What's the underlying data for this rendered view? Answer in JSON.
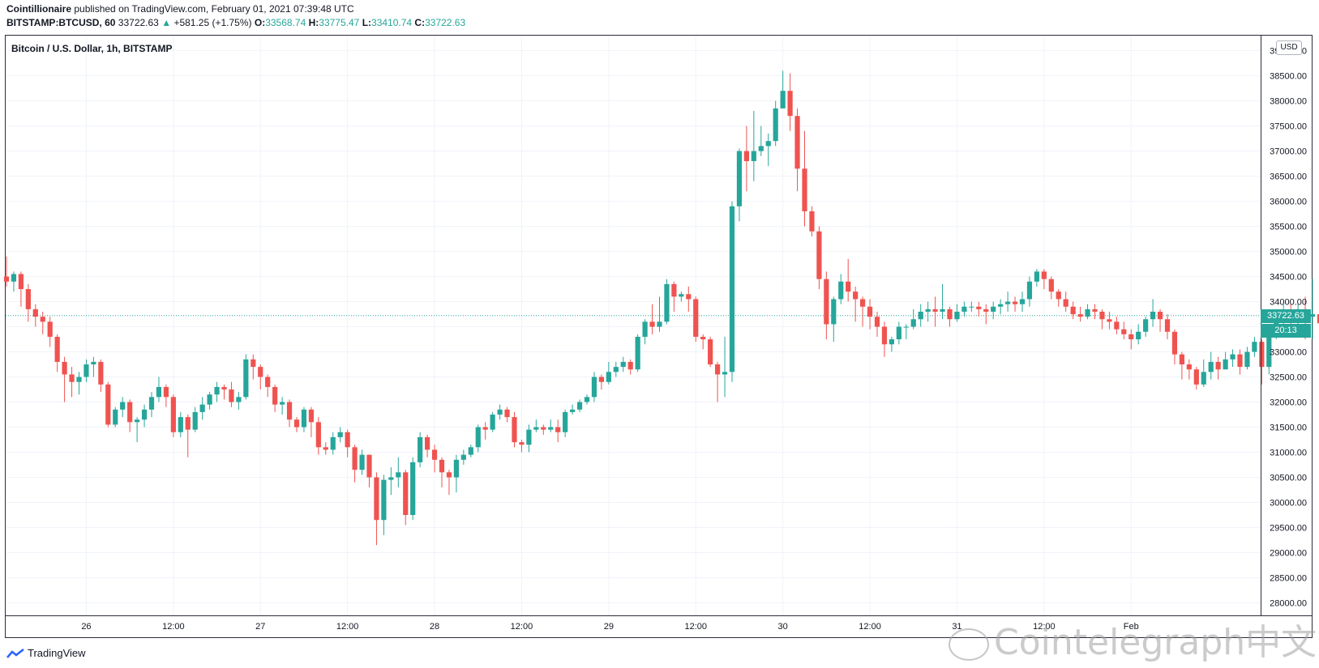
{
  "header": {
    "line1_author": "Cointillionaire",
    "line1_rest": "published on TradingView.com, February 01, 2021 07:39:48 UTC",
    "symbol": "BITSTAMP:BTCUSD, 60",
    "last": "33722.63",
    "arrow": "▲",
    "change": "+581.25 (+1.75%)",
    "open_label": "O:",
    "open": "33568.74",
    "high_label": "H:",
    "high": "33775.47",
    "low_label": "L:",
    "low": "33410.74",
    "close_label": "C:",
    "close": "33722.63"
  },
  "legend": {
    "title": "Bitcoin / U.S. Dollar, 1h, BITSTAMP"
  },
  "price_axis": {
    "currency": "USD",
    "last_price": "33722.63",
    "countdown": "20:13"
  },
  "footer": {
    "brand": "TradingView"
  },
  "watermark": {
    "text": "Cointelegraph中文"
  },
  "colors": {
    "up": "#26a69a",
    "down": "#ef5350",
    "grid": "#f0f3fa",
    "last_price_line": "#26a69a"
  },
  "chart_data": {
    "type": "candlestick",
    "y_ticks": [
      "28000.00",
      "28500.00",
      "29000.00",
      "29500.00",
      "30000.00",
      "30500.00",
      "31000.00",
      "31500.00",
      "32000.00",
      "32500.00",
      "33000.00",
      "33500.00",
      "34000.00",
      "34500.00",
      "35000.00",
      "35500.00",
      "36000.00",
      "36500.00",
      "37000.00",
      "37500.00",
      "38000.00",
      "38500.00",
      "39000.00"
    ],
    "ylim": [
      27750,
      39300
    ],
    "x_ticks": [
      {
        "label": "26",
        "index": 11
      },
      {
        "label": "12:00",
        "index": 23
      },
      {
        "label": "27",
        "index": 35
      },
      {
        "label": "12:00",
        "index": 47
      },
      {
        "label": "28",
        "index": 59
      },
      {
        "label": "12:00",
        "index": 71
      },
      {
        "label": "29",
        "index": 83
      },
      {
        "label": "12:00",
        "index": 95
      },
      {
        "label": "30",
        "index": 107
      },
      {
        "label": "12:00",
        "index": 119
      },
      {
        "label": "31",
        "index": 131
      },
      {
        "label": "12:00",
        "index": 143
      },
      {
        "label": "Feb",
        "index": 155
      }
    ],
    "last_price": 33722.63,
    "candles": [
      [
        34500,
        34400,
        34900,
        34300
      ],
      [
        34400,
        34550,
        34600,
        34200
      ],
      [
        34550,
        34250,
        34600,
        33900
      ],
      [
        34250,
        33850,
        34350,
        33600
      ],
      [
        33850,
        33700,
        33950,
        33500
      ],
      [
        33700,
        33600,
        33800,
        33350
      ],
      [
        33600,
        33300,
        33700,
        33100
      ],
      [
        33300,
        32800,
        33350,
        32600
      ],
      [
        32800,
        32550,
        32900,
        32000
      ],
      [
        32550,
        32400,
        32700,
        32100
      ],
      [
        32400,
        32500,
        32600,
        32150
      ],
      [
        32500,
        32750,
        32850,
        32400
      ],
      [
        32750,
        32800,
        32900,
        32500
      ],
      [
        32800,
        32350,
        32850,
        32200
      ],
      [
        32350,
        31550,
        32400,
        31500
      ],
      [
        31550,
        31850,
        31900,
        31500
      ],
      [
        31850,
        32000,
        32100,
        31700
      ],
      [
        32000,
        31600,
        32050,
        31400
      ],
      [
        31600,
        31650,
        31700,
        31200
      ],
      [
        31650,
        31850,
        31950,
        31500
      ],
      [
        31850,
        32100,
        32200,
        31700
      ],
      [
        32100,
        32300,
        32500,
        32000
      ],
      [
        32300,
        32100,
        32350,
        31900
      ],
      [
        32100,
        31400,
        32150,
        31300
      ],
      [
        31400,
        31700,
        31800,
        31300
      ],
      [
        31700,
        31450,
        31750,
        30900
      ],
      [
        31450,
        31800,
        31900,
        31400
      ],
      [
        31800,
        31950,
        32100,
        31650
      ],
      [
        31950,
        32150,
        32200,
        31850
      ],
      [
        32150,
        32300,
        32400,
        32000
      ],
      [
        32300,
        32250,
        32350,
        32050
      ],
      [
        32250,
        32000,
        32400,
        31900
      ],
      [
        32000,
        32100,
        32200,
        31850
      ],
      [
        32100,
        32850,
        32950,
        32050
      ],
      [
        32850,
        32700,
        32950,
        32450
      ],
      [
        32700,
        32500,
        32750,
        32250
      ],
      [
        32500,
        32300,
        32550,
        32100
      ],
      [
        32300,
        31950,
        32350,
        31800
      ],
      [
        31950,
        32000,
        32100,
        31750
      ],
      [
        32000,
        31650,
        32050,
        31500
      ],
      [
        31650,
        31500,
        31700,
        31400
      ],
      [
        31500,
        31850,
        31900,
        31400
      ],
      [
        31850,
        31600,
        31900,
        31300
      ],
      [
        31600,
        31100,
        31700,
        30950
      ],
      [
        31100,
        31050,
        31200,
        30950
      ],
      [
        31050,
        31300,
        31400,
        30950
      ],
      [
        31300,
        31400,
        31500,
        31200
      ],
      [
        31400,
        31100,
        31450,
        30900
      ],
      [
        31100,
        30650,
        31150,
        30400
      ],
      [
        30650,
        30950,
        31050,
        30550
      ],
      [
        30950,
        30500,
        30950,
        30300
      ],
      [
        30500,
        29650,
        30600,
        29150
      ],
      [
        29650,
        30450,
        30550,
        29350
      ],
      [
        30450,
        30500,
        30700,
        30150
      ],
      [
        30500,
        30600,
        30900,
        30300
      ],
      [
        30600,
        29750,
        30650,
        29550
      ],
      [
        29750,
        30800,
        30900,
        29650
      ],
      [
        30800,
        31300,
        31400,
        30700
      ],
      [
        31300,
        31050,
        31350,
        30900
      ],
      [
        31050,
        30850,
        31150,
        30600
      ],
      [
        30850,
        30600,
        30900,
        30300
      ],
      [
        30600,
        30500,
        30650,
        30150
      ],
      [
        30500,
        30850,
        30950,
        30200
      ],
      [
        30850,
        30950,
        31050,
        30750
      ],
      [
        30950,
        31100,
        31150,
        30900
      ],
      [
        31100,
        31500,
        31550,
        31000
      ],
      [
        31500,
        31450,
        31600,
        31250
      ],
      [
        31450,
        31750,
        31800,
        31400
      ],
      [
        31750,
        31850,
        31950,
        31650
      ],
      [
        31850,
        31700,
        31900,
        31600
      ],
      [
        31700,
        31200,
        31800,
        31100
      ],
      [
        31200,
        31150,
        31250,
        31000
      ],
      [
        31150,
        31450,
        31550,
        31000
      ],
      [
        31450,
        31500,
        31650,
        31400
      ],
      [
        31500,
        31450,
        31550,
        31350
      ],
      [
        31450,
        31500,
        31650,
        31400
      ],
      [
        31500,
        31400,
        31650,
        31200
      ],
      [
        31400,
        31800,
        31850,
        31300
      ],
      [
        31800,
        31850,
        31950,
        31750
      ],
      [
        31850,
        32000,
        32050,
        31800
      ],
      [
        32000,
        32100,
        32150,
        31950
      ],
      [
        32100,
        32500,
        32600,
        32000
      ],
      [
        32500,
        32400,
        32550,
        32250
      ],
      [
        32400,
        32600,
        32800,
        32350
      ],
      [
        32600,
        32700,
        32800,
        32500
      ],
      [
        32700,
        32800,
        32900,
        32600
      ],
      [
        32800,
        32650,
        32850,
        32550
      ],
      [
        32650,
        33300,
        33350,
        32600
      ],
      [
        33300,
        33600,
        33650,
        33150
      ],
      [
        33600,
        33500,
        33950,
        33350
      ],
      [
        33500,
        33600,
        34100,
        33400
      ],
      [
        33600,
        34350,
        34450,
        33550
      ],
      [
        34350,
        34100,
        34400,
        33800
      ],
      [
        34100,
        34150,
        34200,
        34000
      ],
      [
        34150,
        34050,
        34300,
        33800
      ],
      [
        34050,
        33300,
        34100,
        33200
      ],
      [
        33300,
        33250,
        33350,
        33050
      ],
      [
        33250,
        32750,
        33300,
        32700
      ],
      [
        32750,
        32550,
        32800,
        32000
      ],
      [
        32550,
        32600,
        33300,
        32100
      ],
      [
        32600,
        35900,
        36000,
        32400
      ],
      [
        35900,
        37000,
        37050,
        35600
      ],
      [
        37000,
        36800,
        37500,
        36200
      ],
      [
        36800,
        37000,
        37800,
        36400
      ],
      [
        37000,
        37100,
        37500,
        36900
      ],
      [
        37100,
        37200,
        37350,
        36700
      ],
      [
        37200,
        37850,
        38000,
        37100
      ],
      [
        37850,
        38200,
        38600,
        37900
      ],
      [
        38200,
        37700,
        38550,
        37400
      ],
      [
        37700,
        36650,
        37850,
        36200
      ],
      [
        36650,
        35800,
        37400,
        35500
      ],
      [
        35800,
        35400,
        35900,
        35300
      ],
      [
        35400,
        34450,
        35500,
        34250
      ],
      [
        34450,
        33550,
        34600,
        33250
      ],
      [
        33550,
        34050,
        34100,
        33200
      ],
      [
        34050,
        34400,
        34550,
        33950
      ],
      [
        34400,
        34200,
        34850,
        34000
      ],
      [
        34200,
        34050,
        34300,
        33600
      ],
      [
        34050,
        33900,
        34100,
        33500
      ],
      [
        33900,
        33700,
        34050,
        33450
      ],
      [
        33700,
        33500,
        33800,
        33300
      ],
      [
        33500,
        33150,
        33600,
        32900
      ],
      [
        33150,
        33250,
        33300,
        33000
      ],
      [
        33250,
        33500,
        33600,
        33150
      ],
      [
        33500,
        33500,
        33550,
        33250
      ],
      [
        33500,
        33650,
        33850,
        33450
      ],
      [
        33650,
        33800,
        33950,
        33500
      ],
      [
        33800,
        33850,
        34000,
        33600
      ],
      [
        33850,
        33800,
        34100,
        33500
      ],
      [
        33800,
        33850,
        34350,
        33650
      ],
      [
        33850,
        33650,
        33900,
        33500
      ],
      [
        33650,
        33800,
        33950,
        33600
      ],
      [
        33800,
        33900,
        34000,
        33700
      ],
      [
        33900,
        33900,
        34000,
        33800
      ],
      [
        33900,
        33850,
        34000,
        33700
      ],
      [
        33850,
        33800,
        33950,
        33550
      ],
      [
        33800,
        33900,
        34000,
        33650
      ],
      [
        33900,
        33950,
        34050,
        33750
      ],
      [
        33950,
        34000,
        34200,
        33800
      ],
      [
        34000,
        33950,
        34100,
        33800
      ],
      [
        33950,
        34050,
        34200,
        33800
      ],
      [
        34050,
        34400,
        34500,
        33900
      ],
      [
        34400,
        34600,
        34650,
        34300
      ],
      [
        34600,
        34450,
        34650,
        34250
      ],
      [
        34450,
        34200,
        34500,
        34050
      ],
      [
        34200,
        34050,
        34250,
        33900
      ],
      [
        34050,
        33900,
        34200,
        33800
      ],
      [
        33900,
        33750,
        34000,
        33650
      ],
      [
        33750,
        33700,
        33900,
        33600
      ],
      [
        33700,
        33850,
        33950,
        33650
      ],
      [
        33850,
        33800,
        33950,
        33650
      ],
      [
        33800,
        33650,
        33850,
        33450
      ],
      [
        33650,
        33600,
        33800,
        33450
      ],
      [
        33600,
        33450,
        33700,
        33350
      ],
      [
        33450,
        33350,
        33600,
        33250
      ],
      [
        33350,
        33250,
        33450,
        33050
      ],
      [
        33250,
        33400,
        33550,
        33150
      ],
      [
        33400,
        33650,
        33700,
        33300
      ],
      [
        33650,
        33800,
        34050,
        33500
      ],
      [
        33800,
        33650,
        33850,
        33400
      ],
      [
        33650,
        33400,
        33750,
        33250
      ],
      [
        33400,
        32950,
        33450,
        32750
      ],
      [
        32950,
        32750,
        33000,
        32450
      ],
      [
        32750,
        32650,
        32850,
        32450
      ],
      [
        32650,
        32350,
        32700,
        32250
      ],
      [
        32350,
        32600,
        32850,
        32300
      ],
      [
        32600,
        32800,
        33000,
        32450
      ],
      [
        32800,
        32650,
        32900,
        32450
      ],
      [
        32650,
        32850,
        33000,
        32650
      ],
      [
        32850,
        32950,
        33050,
        32700
      ],
      [
        32950,
        32700,
        33050,
        32550
      ],
      [
        32700,
        33000,
        33100,
        32650
      ],
      [
        33000,
        33200,
        33300,
        32900
      ],
      [
        33200,
        32700,
        33250,
        32350
      ],
      [
        32700,
        33350,
        33400,
        32550
      ],
      [
        33350,
        33700,
        33800,
        33250
      ],
      [
        33700,
        33750,
        33950,
        33550
      ],
      [
        33750,
        33650,
        33950,
        33500
      ],
      [
        33650,
        33850,
        33950,
        33350
      ],
      [
        33850,
        33700,
        34100,
        33250
      ],
      [
        33700,
        33750,
        34450,
        33250
      ],
      [
        33750,
        33568.74,
        33900,
        33400
      ],
      [
        33568.74,
        33722.63,
        33775.47,
        33410.74
      ]
    ]
  }
}
